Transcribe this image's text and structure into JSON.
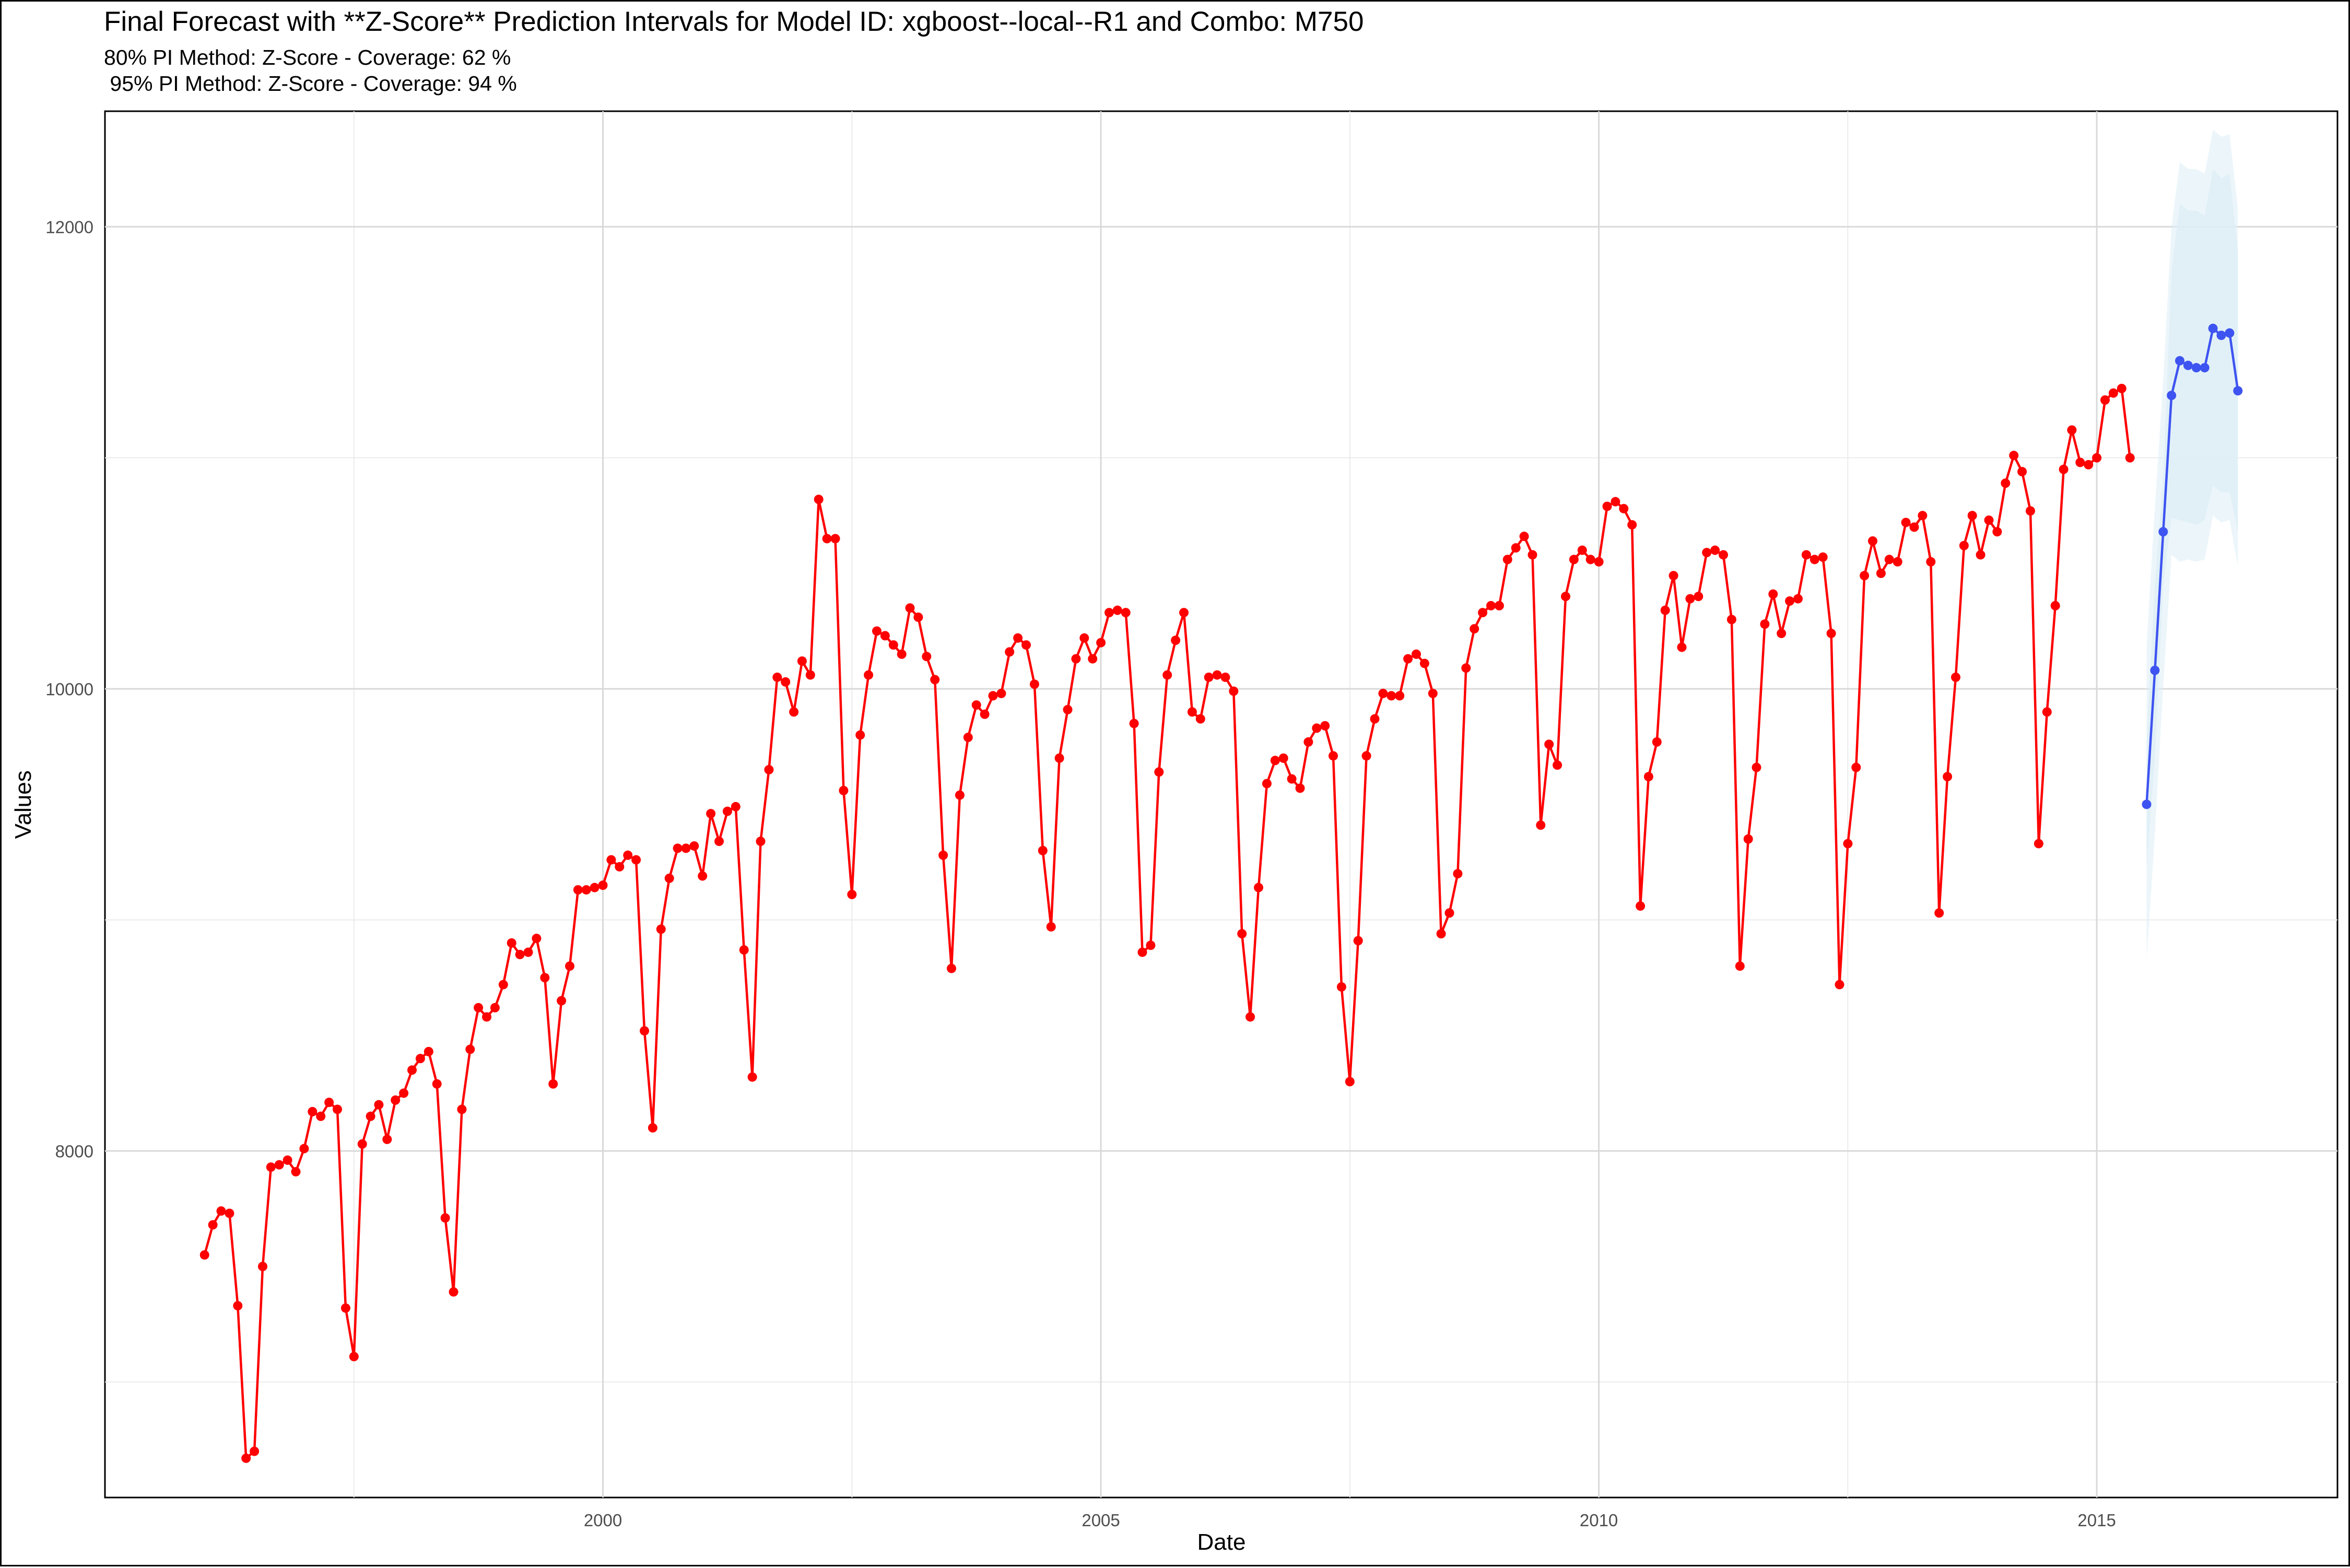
{
  "chart_data": {
    "type": "line",
    "title": "Final Forecast with **Z-Score** Prediction Intervals for Model ID: xgboost--local--R1 and Combo: M750",
    "subtitle_lines": [
      "80% PI Method: Z-Score - Coverage: 62 %",
      " 95% PI Method: Z-Score - Coverage: 94 %"
    ],
    "xlabel": "Date",
    "ylabel": "Values",
    "x_ticks": [
      "2000",
      "2005",
      "2010",
      "2015"
    ],
    "y_ticks": [
      8000,
      10000,
      12000
    ],
    "xlim": [
      "1995-01-01",
      "2017-06-01"
    ],
    "ylim": [
      6500,
      12500
    ],
    "grid": true,
    "legend": "none",
    "series": [
      {
        "color": "#ff0000",
        "start": "1996-01",
        "values": [
          7550,
          7680,
          7740,
          7730,
          7330,
          6670,
          6700,
          7500,
          7930,
          7940,
          7960,
          7910,
          8010,
          8170,
          8150,
          8210,
          8180,
          7320,
          7110,
          8030,
          8150,
          8200,
          8050,
          8220,
          8250,
          8350,
          8400,
          8430,
          8290,
          7710,
          7390,
          8180,
          8440,
          8620,
          8580,
          8620,
          8720,
          8900,
          8850,
          8860,
          8920,
          8750,
          8290,
          8650,
          8800,
          9130,
          9130,
          9140,
          9150,
          9260,
          9230,
          9280,
          9260,
          8520,
          8100,
          8960,
          9180,
          9310,
          9310,
          9320,
          9190,
          9460,
          9340,
          9470,
          9490,
          8870,
          8320,
          9340,
          9650,
          10050,
          10030,
          9900,
          10120,
          10060,
          10820,
          10650,
          10650,
          9560,
          9110,
          9800,
          10060,
          10250,
          10230,
          10190,
          10150,
          10350,
          10310,
          10140,
          10040,
          9280,
          8790,
          9540,
          9790,
          9930,
          9890,
          9970,
          9980,
          10160,
          10220,
          10190,
          10020,
          9300,
          8970,
          9700,
          9910,
          10130,
          10220,
          10130,
          10200,
          10330,
          10340,
          10330,
          9850,
          8860,
          8890,
          9640,
          10060,
          10210,
          10330,
          9900,
          9870,
          10050,
          10060,
          10050,
          9990,
          8940,
          8580,
          9140,
          9590,
          9690,
          9700,
          9610,
          9570,
          9770,
          9830,
          9840,
          9710,
          8710,
          8300,
          8910,
          9710,
          9870,
          9980,
          9970,
          9970,
          10130,
          10150,
          10110,
          9980,
          8940,
          9030,
          9200,
          10090,
          10260,
          10330,
          10360,
          10360,
          10560,
          10610,
          10660,
          10580,
          9410,
          9760,
          9670,
          10400,
          10560,
          10600,
          10560,
          10550,
          10790,
          10810,
          10780,
          10710,
          9060,
          9620,
          9770,
          10340,
          10490,
          10180,
          10390,
          10400,
          10590,
          10600,
          10580,
          10300,
          8800,
          9350,
          9660,
          10280,
          10410,
          10240,
          10380,
          10390,
          10580,
          10560,
          10570,
          10240,
          8720,
          9330,
          9660,
          10490,
          10640,
          10500,
          10560,
          10550,
          10720,
          10700,
          10750,
          10550,
          9030,
          9620,
          10050,
          10620,
          10750,
          10580,
          10730,
          10680,
          10890,
          11010,
          10940,
          10770,
          9330,
          9900,
          10360,
          10950,
          11120,
          10980,
          10970,
          11000,
          11250,
          11280,
          11300,
          11000
        ]
      },
      {
        "color": "#3e54f0",
        "start": "2015-07",
        "values": [
          9500,
          10080,
          10680,
          11270,
          11420,
          11400,
          11390,
          11390,
          11560,
          11530,
          11540,
          11290
        ]
      }
    ],
    "intervals": {
      "color": "#ddeef5",
      "start": "2015-07",
      "pi80": {
        "lower": [
          9220,
          9700,
          10450,
          10740,
          10730,
          10720,
          10710,
          10730,
          10880,
          10850,
          10850,
          10680
        ],
        "upper": [
          9780,
          10460,
          10910,
          11810,
          12100,
          12070,
          12070,
          12050,
          12250,
          12210,
          12230,
          11900
        ]
      },
      "pi95": {
        "lower": [
          8830,
          9370,
          10010,
          10580,
          10550,
          10560,
          10550,
          10560,
          10750,
          10720,
          10730,
          10530
        ],
        "upper": [
          10190,
          10790,
          11340,
          12000,
          12280,
          12250,
          12250,
          12230,
          12420,
          12390,
          12400,
          12080
        ]
      }
    }
  }
}
